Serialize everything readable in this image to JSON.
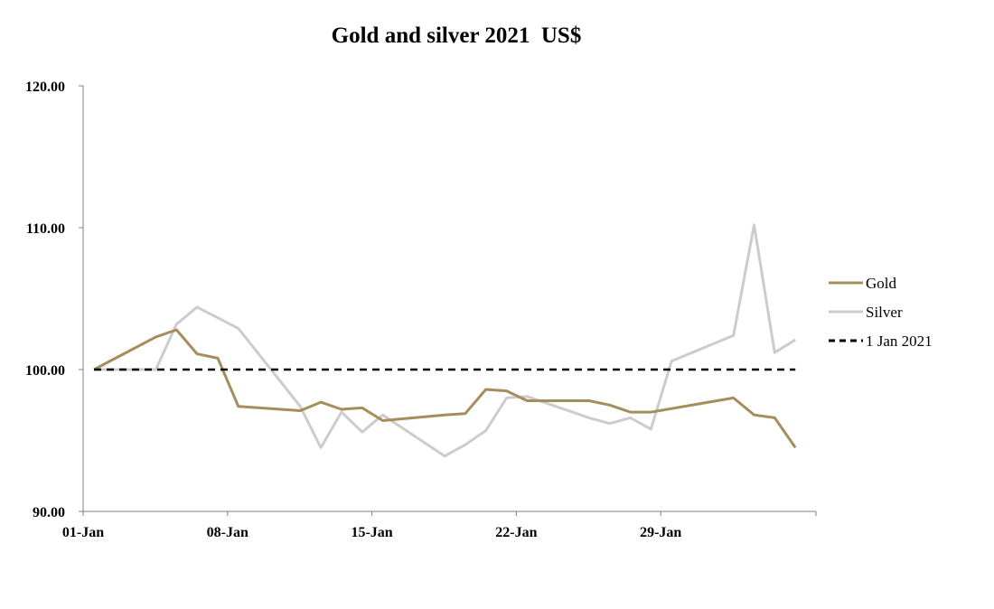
{
  "chart_data": {
    "type": "line",
    "title": "Gold and silver 2021  US$",
    "xlabel": "",
    "ylabel": "",
    "ylim": [
      90,
      120
    ],
    "y_ticks": [
      "90.00",
      "100.00",
      "110.00",
      "120.00"
    ],
    "x_range": [
      "2021-01-01",
      "2021-02-05"
    ],
    "x_ticks": [
      {
        "date": "2021-01-01",
        "label": "01-Jan"
      },
      {
        "date": "2021-01-08",
        "label": "08-Jan"
      },
      {
        "date": "2021-01-15",
        "label": "15-Jan"
      },
      {
        "date": "2021-01-22",
        "label": "22-Jan"
      },
      {
        "date": "2021-01-29",
        "label": "29-Jan"
      }
    ],
    "grid": false,
    "legend_position": "right",
    "series": [
      {
        "name": "Gold",
        "color": "#a48e5b",
        "style": "solid",
        "points": [
          [
            "2021-01-01",
            100.0
          ],
          [
            "2021-01-04",
            102.3
          ],
          [
            "2021-01-05",
            102.8
          ],
          [
            "2021-01-06",
            101.1
          ],
          [
            "2021-01-07",
            100.8
          ],
          [
            "2021-01-08",
            97.4
          ],
          [
            "2021-01-11",
            97.1
          ],
          [
            "2021-01-12",
            97.7
          ],
          [
            "2021-01-13",
            97.2
          ],
          [
            "2021-01-14",
            97.3
          ],
          [
            "2021-01-15",
            96.4
          ],
          [
            "2021-01-18",
            96.8
          ],
          [
            "2021-01-19",
            96.9
          ],
          [
            "2021-01-20",
            98.6
          ],
          [
            "2021-01-21",
            98.5
          ],
          [
            "2021-01-22",
            97.8
          ],
          [
            "2021-01-25",
            97.8
          ],
          [
            "2021-01-26",
            97.5
          ],
          [
            "2021-01-27",
            97.0
          ],
          [
            "2021-01-28",
            97.0
          ],
          [
            "2021-02-01",
            98.0
          ],
          [
            "2021-02-02",
            96.8
          ],
          [
            "2021-02-03",
            96.6
          ],
          [
            "2021-02-04",
            94.5
          ]
        ]
      },
      {
        "name": "Silver",
        "color": "#cccccc",
        "style": "solid",
        "points": [
          [
            "2021-01-01",
            100.0
          ],
          [
            "2021-01-04",
            100.0
          ],
          [
            "2021-01-05",
            103.2
          ],
          [
            "2021-01-06",
            104.4
          ],
          [
            "2021-01-08",
            102.9
          ],
          [
            "2021-01-11",
            97.4
          ],
          [
            "2021-01-12",
            94.5
          ],
          [
            "2021-01-13",
            97.0
          ],
          [
            "2021-01-14",
            95.6
          ],
          [
            "2021-01-15",
            96.8
          ],
          [
            "2021-01-18",
            93.9
          ],
          [
            "2021-01-19",
            94.7
          ],
          [
            "2021-01-20",
            95.7
          ],
          [
            "2021-01-21",
            98.0
          ],
          [
            "2021-01-22",
            98.1
          ],
          [
            "2021-01-25",
            96.6
          ],
          [
            "2021-01-26",
            96.2
          ],
          [
            "2021-01-27",
            96.6
          ],
          [
            "2021-01-28",
            95.8
          ],
          [
            "2021-01-29",
            100.6
          ],
          [
            "2021-02-01",
            102.4
          ],
          [
            "2021-02-02",
            110.2
          ],
          [
            "2021-02-03",
            101.2
          ],
          [
            "2021-02-04",
            102.1
          ]
        ]
      },
      {
        "name": "1 Jan 2021",
        "color": "#000000",
        "style": "dashed",
        "points": [
          [
            "2021-01-01",
            100.0
          ],
          [
            "2021-02-04",
            100.0
          ]
        ]
      }
    ]
  }
}
